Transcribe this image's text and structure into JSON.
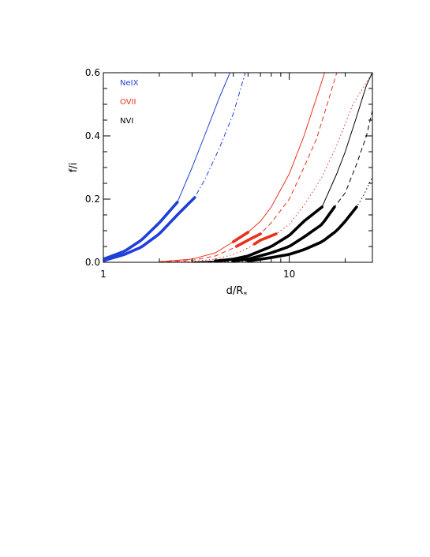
{
  "chart_data": {
    "type": "line",
    "xscale": "log",
    "xlim": [
      1,
      28
    ],
    "ylim": [
      0,
      0.6
    ],
    "xlabel": "d/R",
    "xlabel_subscript": "*",
    "ylabel": "f/i",
    "x_ticks": [
      {
        "value": 1,
        "label": "1"
      },
      {
        "value": 10,
        "label": "10"
      }
    ],
    "x_minor_ticks": [
      2,
      3,
      4,
      5,
      6,
      7,
      8,
      9,
      20
    ],
    "y_ticks": [
      {
        "value": 0.0,
        "label": "0.0"
      },
      {
        "value": 0.2,
        "label": "0.2"
      },
      {
        "value": 0.4,
        "label": "0.4"
      },
      {
        "value": 0.6,
        "label": "0.6"
      }
    ],
    "y_minor_step": 0.05,
    "grid": false,
    "legend_position": "top-left",
    "legend": [
      {
        "label": "NeIX",
        "color": "#1f3fd8"
      },
      {
        "label": "OVII",
        "color": "#e8321e"
      },
      {
        "label": "NVI",
        "color": "#000000"
      }
    ],
    "series": [
      {
        "group": "NeIX",
        "color": "#1f3fd8",
        "dash": "solid",
        "points": [
          [
            1,
            0.01
          ],
          [
            1.3,
            0.035
          ],
          [
            1.6,
            0.07
          ],
          [
            2,
            0.125
          ],
          [
            2.5,
            0.19
          ],
          [
            3,
            0.3
          ],
          [
            3.5,
            0.4
          ],
          [
            4.2,
            0.52
          ],
          [
            4.8,
            0.6
          ]
        ],
        "thick_until": 2.5
      },
      {
        "group": "NeIX",
        "color": "#1f3fd8",
        "dash": "dashdot",
        "points": [
          [
            1,
            0.005
          ],
          [
            1.3,
            0.025
          ],
          [
            1.6,
            0.048
          ],
          [
            2,
            0.09
          ],
          [
            2.5,
            0.15
          ],
          [
            3.1,
            0.205
          ],
          [
            3.5,
            0.26
          ],
          [
            4.2,
            0.36
          ],
          [
            5,
            0.47
          ],
          [
            5.8,
            0.6
          ]
        ],
        "thick_until": 3.1
      },
      {
        "group": "OVII",
        "color": "#e8321e",
        "dash": "solid",
        "points": [
          [
            2,
            0.002
          ],
          [
            3,
            0.01
          ],
          [
            4,
            0.03
          ],
          [
            5,
            0.065
          ],
          [
            6,
            0.095
          ],
          [
            7,
            0.13
          ],
          [
            8,
            0.175
          ],
          [
            10,
            0.28
          ],
          [
            12,
            0.4
          ],
          [
            14,
            0.52
          ],
          [
            15.5,
            0.6
          ]
        ],
        "thick_from": 5,
        "thick_until": 6
      },
      {
        "group": "OVII",
        "color": "#e8321e",
        "dash": "dashed",
        "points": [
          [
            2,
            0.001
          ],
          [
            3,
            0.006
          ],
          [
            4,
            0.02
          ],
          [
            5,
            0.045
          ],
          [
            6,
            0.07
          ],
          [
            7,
            0.09
          ],
          [
            8,
            0.125
          ],
          [
            10,
            0.2
          ],
          [
            12,
            0.3
          ],
          [
            14,
            0.39
          ],
          [
            16,
            0.5
          ],
          [
            18,
            0.6
          ]
        ],
        "thick_from": 5.2,
        "thick_until": 7.0
      },
      {
        "group": "OVII",
        "color": "#e8321e",
        "dash": "dotted",
        "points": [
          [
            2,
            0.0
          ],
          [
            3,
            0.003
          ],
          [
            4,
            0.01
          ],
          [
            5,
            0.025
          ],
          [
            6,
            0.045
          ],
          [
            7,
            0.07
          ],
          [
            8.5,
            0.09
          ],
          [
            10,
            0.12
          ],
          [
            12,
            0.18
          ],
          [
            15,
            0.27
          ],
          [
            18,
            0.37
          ],
          [
            22,
            0.5
          ],
          [
            28,
            0.6
          ]
        ],
        "thick_from": 6.5,
        "thick_until": 8.5
      },
      {
        "group": "NVI",
        "color": "#000000",
        "dash": "solid",
        "points": [
          [
            3,
            0.001
          ],
          [
            4,
            0.004
          ],
          [
            5,
            0.01
          ],
          [
            6,
            0.02
          ],
          [
            8,
            0.05
          ],
          [
            10,
            0.085
          ],
          [
            12,
            0.13
          ],
          [
            15,
            0.175
          ],
          [
            18,
            0.28
          ],
          [
            20,
            0.35
          ],
          [
            23,
            0.46
          ],
          [
            26,
            0.56
          ],
          [
            28,
            0.6
          ]
        ],
        "thick_from": 4,
        "thick_until": 15
      },
      {
        "group": "NVI",
        "color": "#000000",
        "dash": "dashed",
        "points": [
          [
            3,
            0.0
          ],
          [
            4,
            0.002
          ],
          [
            5,
            0.005
          ],
          [
            6,
            0.01
          ],
          [
            8,
            0.03
          ],
          [
            10,
            0.05
          ],
          [
            12,
            0.08
          ],
          [
            15,
            0.12
          ],
          [
            17.5,
            0.175
          ],
          [
            20,
            0.22
          ],
          [
            23,
            0.31
          ],
          [
            26,
            0.4
          ],
          [
            28,
            0.48
          ]
        ],
        "thick_from": 5,
        "thick_until": 17.5
      },
      {
        "group": "NVI",
        "color": "#000000",
        "dash": "dotted",
        "points": [
          [
            3,
            0.0
          ],
          [
            5,
            0.002
          ],
          [
            6,
            0.004
          ],
          [
            8,
            0.015
          ],
          [
            10,
            0.025
          ],
          [
            12,
            0.04
          ],
          [
            15,
            0.065
          ],
          [
            18,
            0.1
          ],
          [
            20,
            0.13
          ],
          [
            23,
            0.175
          ],
          [
            25,
            0.21
          ],
          [
            28,
            0.27
          ]
        ],
        "thick_from": 6,
        "thick_until": 23
      }
    ]
  }
}
